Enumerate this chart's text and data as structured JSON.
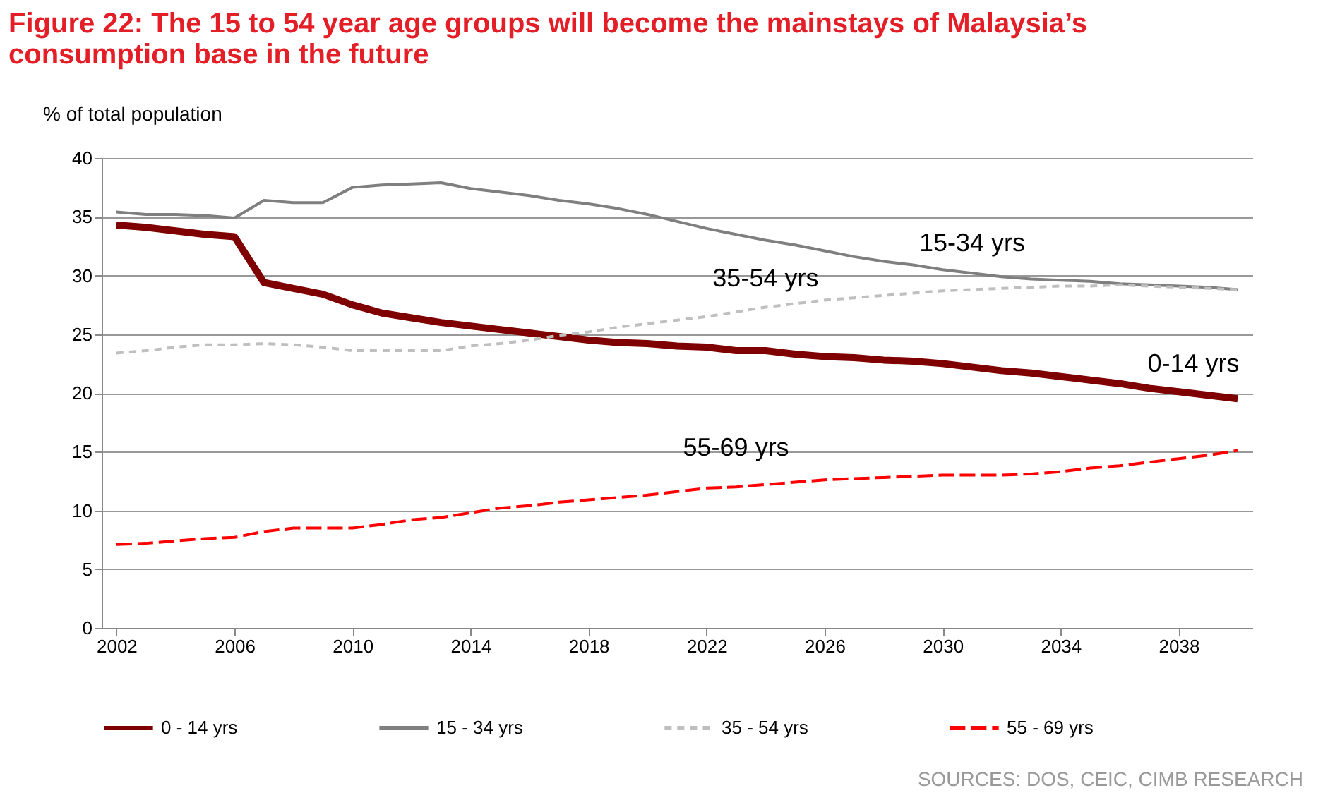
{
  "chart_data": {
    "type": "line",
    "title": "Figure 22: The 15 to 54 year age groups will become the mainstays of Malaysia’s consumption base in the future",
    "ylabel": "% of total population",
    "x": [
      2002,
      2003,
      2004,
      2005,
      2006,
      2007,
      2008,
      2009,
      2010,
      2011,
      2012,
      2013,
      2014,
      2015,
      2016,
      2017,
      2018,
      2019,
      2020,
      2021,
      2022,
      2023,
      2024,
      2025,
      2026,
      2027,
      2028,
      2029,
      2030,
      2031,
      2032,
      2033,
      2034,
      2035,
      2036,
      2037,
      2038,
      2039,
      2040
    ],
    "xlim": [
      2001.5,
      2040.5
    ],
    "xticks": [
      2002,
      2006,
      2010,
      2014,
      2018,
      2022,
      2026,
      2030,
      2034,
      2038
    ],
    "ylim": [
      0,
      40
    ],
    "yticks": [
      0,
      5,
      10,
      15,
      20,
      25,
      30,
      35,
      40
    ],
    "grid": "y",
    "legend": "bottom",
    "marker": "none",
    "series": [
      {
        "name": "0 - 14 yrs",
        "color": "#7f0000",
        "line_style": "solid",
        "values": [
          34.3,
          34.1,
          33.8,
          33.5,
          33.3,
          29.4,
          28.9,
          28.4,
          27.5,
          26.8,
          26.4,
          26.0,
          25.7,
          25.4,
          25.1,
          24.8,
          24.5,
          24.3,
          24.2,
          24.0,
          23.9,
          23.6,
          23.6,
          23.3,
          23.1,
          23.0,
          22.8,
          22.7,
          22.5,
          22.2,
          21.9,
          21.7,
          21.4,
          21.1,
          20.8,
          20.4,
          20.1,
          19.8,
          19.5
        ]
      },
      {
        "name": "15 - 34 yrs",
        "color": "#7f7f7f",
        "line_style": "solid",
        "values": [
          35.4,
          35.2,
          35.2,
          35.1,
          34.9,
          36.4,
          36.2,
          36.2,
          37.5,
          37.7,
          37.8,
          37.9,
          37.4,
          37.1,
          36.8,
          36.4,
          36.1,
          35.7,
          35.2,
          34.6,
          34.0,
          33.5,
          33.0,
          32.6,
          32.1,
          31.6,
          31.2,
          30.9,
          30.5,
          30.2,
          29.9,
          29.7,
          29.6,
          29.5,
          29.3,
          29.2,
          29.1,
          29.0,
          28.8
        ]
      },
      {
        "name": "35 - 54 yrs",
        "color": "#bfbfbf",
        "line_style": "dotted",
        "values": [
          23.4,
          23.6,
          23.9,
          24.1,
          24.1,
          24.2,
          24.1,
          23.9,
          23.6,
          23.6,
          23.6,
          23.6,
          24.0,
          24.2,
          24.5,
          24.9,
          25.2,
          25.6,
          25.9,
          26.2,
          26.5,
          26.9,
          27.3,
          27.6,
          27.9,
          28.1,
          28.3,
          28.5,
          28.7,
          28.8,
          28.9,
          29.0,
          29.1,
          29.1,
          29.2,
          29.1,
          29.0,
          28.9,
          28.8
        ]
      },
      {
        "name": "55 - 69 yrs",
        "color": "#ff0000",
        "line_style": "dashed",
        "values": [
          7.1,
          7.2,
          7.4,
          7.6,
          7.7,
          8.2,
          8.5,
          8.5,
          8.5,
          8.8,
          9.2,
          9.4,
          9.8,
          10.2,
          10.4,
          10.7,
          10.9,
          11.1,
          11.3,
          11.6,
          11.9,
          12.0,
          12.2,
          12.4,
          12.6,
          12.7,
          12.8,
          12.9,
          13.0,
          13.0,
          13.0,
          13.1,
          13.3,
          13.6,
          13.8,
          14.1,
          14.4,
          14.7,
          15.1
        ]
      }
    ],
    "annotations": [
      "15-34 yrs",
      "35-54 yrs",
      "0-14 yrs",
      "55-69 yrs",
      "SOURCES: DOS, CEIC, CIMB RESEARCH"
    ]
  }
}
